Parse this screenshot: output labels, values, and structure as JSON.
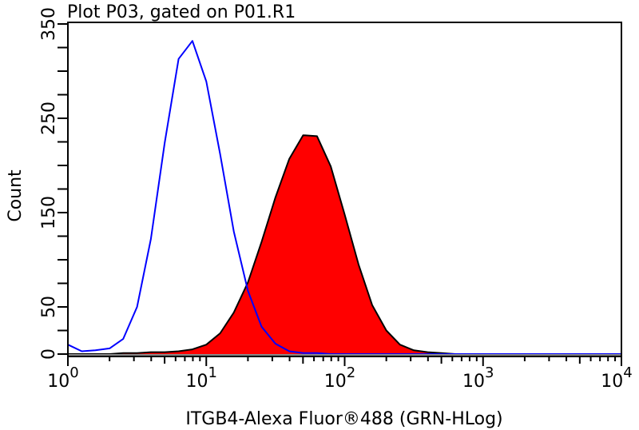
{
  "chart_data": {
    "type": "area",
    "title": "Plot P03, gated on P01.R1",
    "xlabel": "ITGB4-Alexa Fluor®488 (GRN-HLog)",
    "ylabel": "Count",
    "x_scale": "log",
    "xlim": [
      1,
      10000
    ],
    "ylim": [
      0,
      350
    ],
    "x_ticks": [
      {
        "base": "10",
        "exp": "0",
        "value": 1
      },
      {
        "base": "10",
        "exp": "1",
        "value": 10
      },
      {
        "base": "10",
        "exp": "2",
        "value": 100
      },
      {
        "base": "10",
        "exp": "3",
        "value": 1000
      },
      {
        "base": "10",
        "exp": "4",
        "value": 10000
      }
    ],
    "y_tick_labels": [
      "0",
      "50",
      "150",
      "250",
      "350"
    ],
    "y_minor_step": 25,
    "grid": false,
    "x": [
      1,
      1.26,
      1.58,
      2,
      2.51,
      3.16,
      3.98,
      5.01,
      6.31,
      7.94,
      10,
      12.6,
      15.8,
      20,
      25.1,
      31.6,
      39.8,
      50.1,
      63.1,
      79.4,
      100,
      126,
      158,
      200,
      251,
      316,
      398,
      501,
      631,
      794,
      1000,
      1260,
      1580,
      2000,
      2510,
      3160,
      3980,
      5010,
      6310,
      7940,
      10000
    ],
    "series": [
      {
        "style": "line",
        "color": "#0000ff",
        "values": [
          10,
          3,
          4,
          6,
          16,
          50,
          122,
          224,
          313,
          332,
          289,
          212,
          130,
          67,
          29,
          11,
          3,
          1,
          1,
          0,
          0,
          0,
          0,
          0,
          0,
          0,
          0,
          0,
          0,
          0,
          0,
          0,
          0,
          0,
          0,
          0,
          0,
          0,
          0,
          0,
          0
        ]
      },
      {
        "style": "filled",
        "color": "#ff0000",
        "outline": "#000000",
        "values": [
          0,
          0,
          0,
          0,
          1,
          1,
          2,
          2,
          3,
          5,
          10,
          22,
          44,
          76,
          119,
          166,
          207,
          232,
          231,
          199,
          148,
          95,
          52,
          25,
          10,
          4,
          2,
          1,
          0,
          0,
          0,
          0,
          0,
          0,
          0,
          0,
          0,
          0,
          0,
          0,
          0
        ]
      }
    ]
  }
}
